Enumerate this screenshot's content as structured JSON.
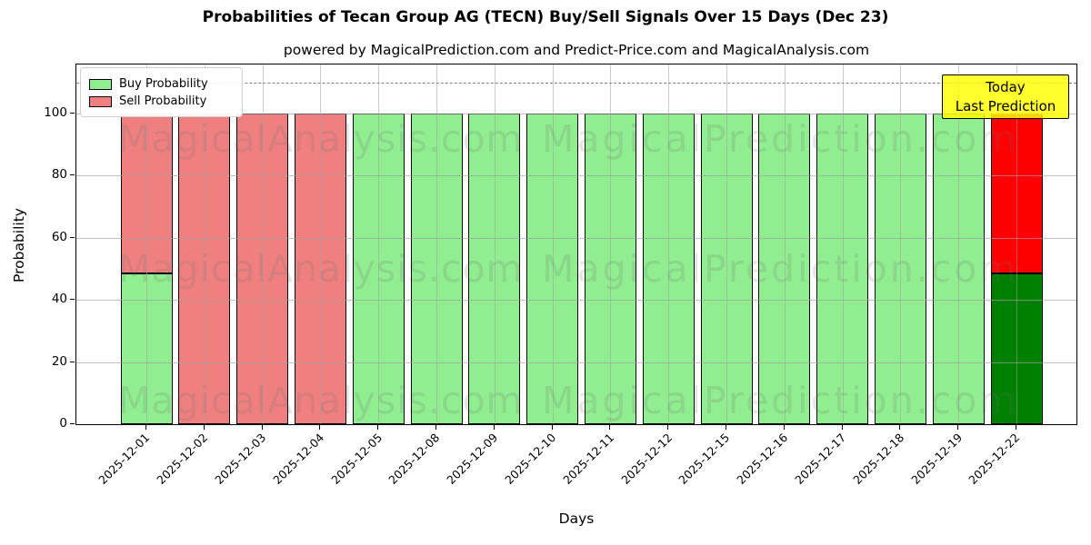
{
  "title": "Probabilities of Tecan Group AG (TECN) Buy/Sell Signals Over 15 Days (Dec 23)",
  "subtitle": "powered by MagicalPrediction.com and Predict-Price.com and MagicalAnalysis.com",
  "watermarks": {
    "left_text": "MagicalAnalysis.com",
    "right_text": "MagicalPrediction.com"
  },
  "annotation": {
    "line1": "Today",
    "line2": "Last Prediction",
    "bg_color": "#FFFF00"
  },
  "legend": {
    "items": [
      {
        "label": "Buy Probability",
        "color": "#90EE90"
      },
      {
        "label": "Sell Probability",
        "color": "#F08080"
      }
    ]
  },
  "chart_data": {
    "type": "bar",
    "stacked": true,
    "title": "Probabilities of Tecan Group AG (TECN) Buy/Sell Signals Over 15 Days (Dec 23)",
    "xlabel": "Days",
    "ylabel": "Probability",
    "ylim": [
      0,
      115.7
    ],
    "yticks": [
      0,
      20,
      40,
      60,
      80,
      100
    ],
    "grid": true,
    "legend_position": "upper left",
    "dashed_line_y": 110,
    "categories": [
      "2025-12-01",
      "2025-12-02",
      "2025-12-03",
      "2025-12-04",
      "2025-12-05",
      "2025-12-08",
      "2025-12-09",
      "2025-12-10",
      "2025-12-11",
      "2025-12-12",
      "2025-12-15",
      "2025-12-16",
      "2025-12-17",
      "2025-12-18",
      "2025-12-19",
      "2025-12-22"
    ],
    "series": [
      {
        "name": "Buy Probability",
        "color": "#90EE90",
        "values": [
          48.5,
          0,
          0,
          0,
          100,
          100,
          100,
          100,
          100,
          100,
          100,
          100,
          100,
          100,
          100,
          48.5
        ]
      },
      {
        "name": "Sell Probability",
        "color": "#F08080",
        "values": [
          51.5,
          100,
          100,
          100,
          0,
          0,
          0,
          0,
          0,
          0,
          0,
          0,
          0,
          0,
          0,
          51.5
        ]
      }
    ],
    "last_bar_colors": {
      "buy": "#008000",
      "sell": "#FF0000"
    },
    "bar_edge_color": "#000000"
  }
}
